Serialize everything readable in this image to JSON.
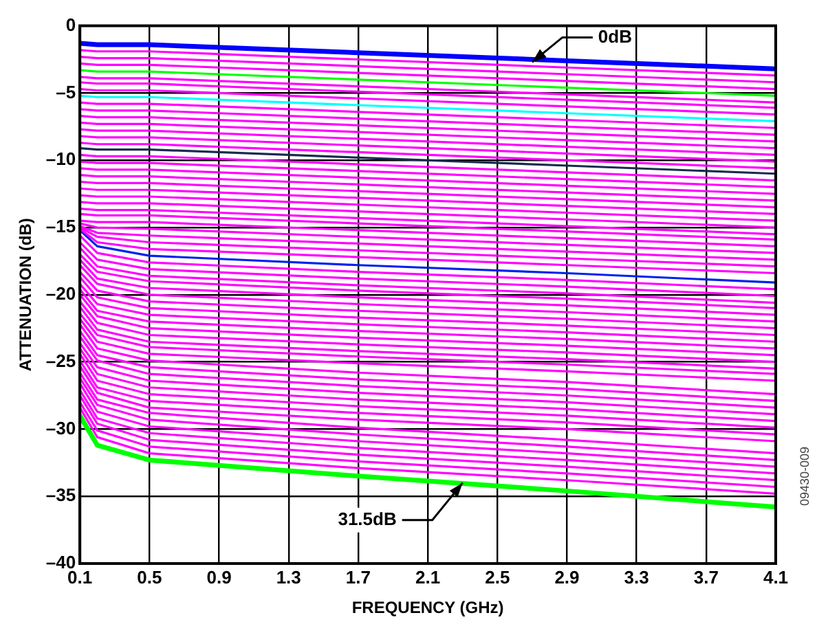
{
  "chart_data": {
    "type": "line",
    "xlabel": "FREQUENCY (GHz)",
    "ylabel": "ATTENUATION (dB)",
    "x": [
      0.1,
      0.2,
      0.5,
      1.7,
      2.9,
      4.1
    ],
    "xlim": [
      0.1,
      4.1
    ],
    "xticks": [
      0.1,
      0.5,
      0.9,
      1.3,
      1.7,
      2.1,
      2.5,
      2.9,
      3.3,
      3.7,
      4.1
    ],
    "ylim": [
      -40,
      0
    ],
    "yticks": [
      {
        "value": -40,
        "label": "–40"
      },
      {
        "value": -35,
        "label": "–35"
      },
      {
        "value": -30,
        "label": "–30"
      },
      {
        "value": -25,
        "label": "–25"
      },
      {
        "value": -20,
        "label": "–20"
      },
      {
        "value": -15,
        "label": "–15"
      },
      {
        "value": -10,
        "label": "–10"
      },
      {
        "value": -5,
        "label": "–5"
      },
      {
        "value": 0,
        "label": "0"
      }
    ],
    "grid": true,
    "marker": "none",
    "line_style": "solid",
    "annotations": [
      {
        "text": "0dB",
        "x": 2.7,
        "y": -2.7
      },
      {
        "text": "31.5dB",
        "x": 2.3,
        "y": -34.0
      },
      "09430-009"
    ],
    "series": [
      {
        "color": "#0000ff",
        "values": [
          -1.3,
          -1.4,
          -1.4,
          -2.0,
          -2.6,
          -3.2
        ]
      },
      {
        "color": "#ff00ff",
        "values": [
          -1.8,
          -1.9,
          -1.9,
          -2.5,
          -3.1,
          -3.7
        ]
      },
      {
        "color": "#ff00ff",
        "values": [
          -2.3,
          -2.4,
          -2.4,
          -3.0,
          -3.6,
          -4.2
        ]
      },
      {
        "color": "#ff00ff",
        "values": [
          -2.8,
          -2.9,
          -2.9,
          -3.5,
          -4.1,
          -4.7
        ]
      },
      {
        "color": "#00ff00",
        "values": [
          -3.3,
          -3.4,
          -3.4,
          -4.0,
          -4.6,
          -5.2
        ]
      },
      {
        "color": "#ff00ff",
        "values": [
          -3.8,
          -3.9,
          -3.9,
          -4.5,
          -5.1,
          -5.7
        ]
      },
      {
        "color": "#ff00ff",
        "values": [
          -4.2,
          -4.3,
          -4.3,
          -4.9,
          -5.5,
          -6.1
        ]
      },
      {
        "color": "#ff00ff",
        "values": [
          -4.7,
          -4.8,
          -4.8,
          -5.4,
          -6.0,
          -6.6
        ]
      },
      {
        "color": "#00ffff",
        "values": [
          -5.2,
          -5.3,
          -5.3,
          -5.9,
          -6.5,
          -7.1
        ]
      },
      {
        "color": "#ff00ff",
        "values": [
          -5.7,
          -5.8,
          -5.8,
          -6.4,
          -7.0,
          -7.6
        ]
      },
      {
        "color": "#ff00ff",
        "values": [
          -6.2,
          -6.3,
          -6.3,
          -6.9,
          -7.5,
          -8.1
        ]
      },
      {
        "color": "#ff00ff",
        "values": [
          -6.7,
          -6.8,
          -6.8,
          -7.4,
          -8.0,
          -8.6
        ]
      },
      {
        "color": "#ff00ff",
        "values": [
          -7.2,
          -7.3,
          -7.3,
          -7.9,
          -8.5,
          -9.1
        ]
      },
      {
        "color": "#ff00ff",
        "values": [
          -7.7,
          -7.8,
          -7.8,
          -8.4,
          -9.0,
          -9.6
        ]
      },
      {
        "color": "#ff00ff",
        "values": [
          -8.2,
          -8.3,
          -8.3,
          -8.9,
          -9.5,
          -10.1
        ]
      },
      {
        "color": "#ff00ff",
        "values": [
          -8.7,
          -8.8,
          -8.8,
          -9.4,
          -10.0,
          -10.6
        ]
      },
      {
        "color": "#1a2a50",
        "values": [
          -9.1,
          -9.2,
          -9.2,
          -9.8,
          -10.4,
          -11.0
        ]
      },
      {
        "color": "#ff00ff",
        "values": [
          -9.6,
          -9.7,
          -9.7,
          -10.3,
          -10.9,
          -11.5
        ]
      },
      {
        "color": "#ff00ff",
        "values": [
          -10.1,
          -10.2,
          -10.2,
          -10.8,
          -11.4,
          -12.0
        ]
      },
      {
        "color": "#ff00ff",
        "values": [
          -10.6,
          -10.7,
          -10.7,
          -11.3,
          -11.9,
          -12.5
        ]
      },
      {
        "color": "#ff00ff",
        "values": [
          -11.1,
          -11.2,
          -11.2,
          -11.8,
          -12.4,
          -13.0
        ]
      },
      {
        "color": "#ff00ff",
        "values": [
          -11.6,
          -11.7,
          -11.7,
          -12.3,
          -12.9,
          -13.5
        ]
      },
      {
        "color": "#ff00ff",
        "values": [
          -12.1,
          -12.2,
          -12.2,
          -12.8,
          -13.4,
          -14.0
        ]
      },
      {
        "color": "#ff00ff",
        "values": [
          -12.6,
          -12.7,
          -12.7,
          -13.3,
          -13.9,
          -14.5
        ]
      },
      {
        "color": "#ff00ff",
        "values": [
          -13.1,
          -13.2,
          -13.2,
          -13.8,
          -14.4,
          -15.0
        ]
      },
      {
        "color": "#ff00ff",
        "values": [
          -13.6,
          -13.7,
          -13.7,
          -14.3,
          -14.9,
          -15.5
        ]
      },
      {
        "color": "#ff00ff",
        "values": [
          -14.0,
          -14.1,
          -14.1,
          -14.7,
          -15.3,
          -15.9
        ]
      },
      {
        "color": "#ff00ff",
        "values": [
          -14.5,
          -14.6,
          -14.6,
          -15.2,
          -15.8,
          -16.4
        ]
      },
      {
        "color": "#ff00ff",
        "values": [
          -14.7,
          -15.0,
          -15.1,
          -15.7,
          -16.3,
          -16.9
        ]
      },
      {
        "color": "#ff00ff",
        "values": [
          -14.9,
          -15.4,
          -15.6,
          -16.2,
          -16.8,
          -17.4
        ]
      },
      {
        "color": "#ff00ff",
        "values": [
          -15.0,
          -15.7,
          -16.1,
          -16.7,
          -17.3,
          -17.9
        ]
      },
      {
        "color": "#ff00ff",
        "values": [
          -15.1,
          -16.1,
          -16.6,
          -17.2,
          -17.8,
          -18.4
        ]
      },
      {
        "color": "#0022ee",
        "values": [
          -15.2,
          -16.4,
          -17.1,
          -17.8,
          -18.4,
          -19.1
        ]
      },
      {
        "color": "#ff00ff",
        "values": [
          -15.6,
          -16.9,
          -17.6,
          -18.3,
          -18.9,
          -19.6
        ]
      },
      {
        "color": "#ff00ff",
        "values": [
          -16.1,
          -17.4,
          -18.1,
          -18.8,
          -19.4,
          -20.1
        ]
      },
      {
        "color": "#ff00ff",
        "values": [
          -16.5,
          -17.9,
          -18.6,
          -19.3,
          -19.9,
          -20.6
        ]
      },
      {
        "color": "#ff00ff",
        "values": [
          -17.0,
          -18.3,
          -19.0,
          -19.7,
          -20.3,
          -21.0
        ]
      },
      {
        "color": "#ff00ff",
        "values": [
          -17.4,
          -18.8,
          -19.5,
          -20.2,
          -20.8,
          -21.5
        ]
      },
      {
        "color": "#ff00ff",
        "values": [
          -17.8,
          -19.2,
          -20.0,
          -20.7,
          -21.3,
          -22.0
        ]
      },
      {
        "color": "#ff00ff",
        "values": [
          -18.3,
          -19.7,
          -20.5,
          -21.2,
          -21.8,
          -22.5
        ]
      },
      {
        "color": "#ff00ff",
        "values": [
          -18.7,
          -20.2,
          -21.0,
          -21.7,
          -22.3,
          -23.0
        ]
      },
      {
        "color": "#ff00ff",
        "values": [
          -19.2,
          -20.7,
          -21.5,
          -22.2,
          -22.8,
          -23.5
        ]
      },
      {
        "color": "#ff00ff",
        "values": [
          -19.6,
          -21.2,
          -22.0,
          -22.7,
          -23.3,
          -24.0
        ]
      },
      {
        "color": "#ff00ff",
        "values": [
          -20.0,
          -21.6,
          -22.5,
          -23.2,
          -23.8,
          -24.5
        ]
      },
      {
        "color": "#ff00ff",
        "values": [
          -20.5,
          -22.1,
          -23.0,
          -23.7,
          -24.3,
          -25.0
        ]
      },
      {
        "color": "#ff00ff",
        "values": [
          -20.9,
          -22.6,
          -23.5,
          -24.2,
          -24.8,
          -25.5
        ]
      },
      {
        "color": "#ff00ff",
        "values": [
          -21.4,
          -23.0,
          -23.9,
          -24.6,
          -25.2,
          -25.9
        ]
      },
      {
        "color": "#ff00ff",
        "values": [
          -21.8,
          -23.5,
          -24.4,
          -25.1,
          -25.7,
          -26.4
        ]
      },
      {
        "color": "#ff00ff",
        "values": [
          -22.2,
          -24.0,
          -24.9,
          -25.8,
          -26.5,
          -27.4
        ]
      },
      {
        "color": "#ff00ff",
        "values": [
          -22.7,
          -24.5,
          -25.4,
          -26.3,
          -27.0,
          -27.9
        ]
      },
      {
        "color": "#ff00ff",
        "values": [
          -23.1,
          -24.9,
          -25.9,
          -26.8,
          -27.5,
          -28.4
        ]
      },
      {
        "color": "#ff00ff",
        "values": [
          -23.6,
          -25.4,
          -26.4,
          -27.3,
          -28.0,
          -28.9
        ]
      },
      {
        "color": "#ff00ff",
        "values": [
          -24.0,
          -25.9,
          -26.9,
          -27.8,
          -28.5,
          -29.4
        ]
      },
      {
        "color": "#ff00ff",
        "values": [
          -24.4,
          -26.4,
          -27.4,
          -28.3,
          -29.0,
          -29.9
        ]
      },
      {
        "color": "#ff00ff",
        "values": [
          -24.9,
          -26.9,
          -27.9,
          -28.8,
          -29.5,
          -30.4
        ]
      },
      {
        "color": "#ff00ff",
        "values": [
          -25.3,
          -27.3,
          -28.4,
          -29.3,
          -30.0,
          -30.9
        ]
      },
      {
        "color": "#ff00ff",
        "values": [
          -25.8,
          -27.8,
          -28.8,
          -29.9,
          -30.8,
          -31.8
        ]
      },
      {
        "color": "#ff00ff",
        "values": [
          -26.2,
          -28.2,
          -29.3,
          -30.4,
          -31.3,
          -32.3
        ]
      },
      {
        "color": "#ff00ff",
        "values": [
          -26.6,
          -28.7,
          -29.8,
          -30.9,
          -31.8,
          -32.8
        ]
      },
      {
        "color": "#ff00ff",
        "values": [
          -27.1,
          -29.2,
          -30.3,
          -31.4,
          -32.3,
          -33.3
        ]
      },
      {
        "color": "#ff00ff",
        "values": [
          -27.5,
          -29.6,
          -30.8,
          -31.9,
          -32.8,
          -33.8
        ]
      },
      {
        "color": "#ff00ff",
        "values": [
          -28.0,
          -30.1,
          -31.3,
          -32.4,
          -33.3,
          -34.3
        ]
      },
      {
        "color": "#ff00ff",
        "values": [
          -28.4,
          -30.6,
          -31.8,
          -32.9,
          -33.8,
          -34.8
        ]
      },
      {
        "color": "#00ff00",
        "values": [
          -29.0,
          -31.2,
          -32.3,
          -33.5,
          -34.6,
          -35.8
        ]
      }
    ]
  }
}
